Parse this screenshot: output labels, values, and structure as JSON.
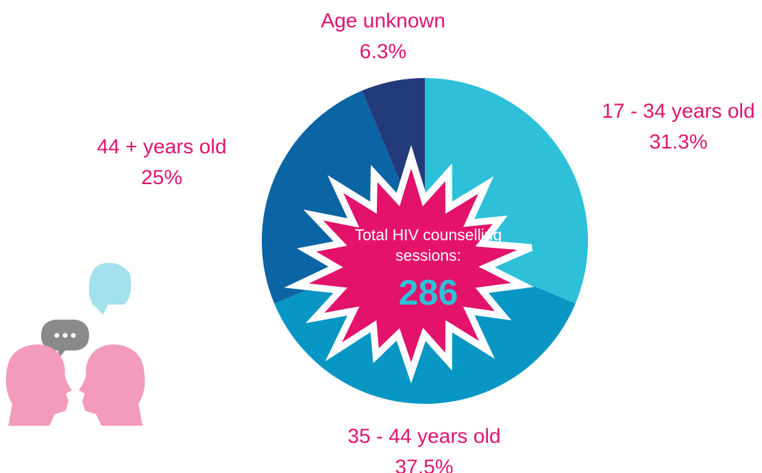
{
  "chart_data": {
    "type": "pie",
    "categories": [
      "17 - 34 years old",
      "35 - 44 years old",
      "44 + years old",
      "Age unknown"
    ],
    "values": [
      31.3,
      37.5,
      25,
      6.3
    ],
    "value_labels": [
      "31.3%",
      "37.5%",
      "25%",
      "6.3%"
    ],
    "colors": [
      "#2ec0d8",
      "#0896c4",
      "#0b64a3",
      "#233b7a"
    ],
    "center_label": "Total HIV counselling sessions:",
    "total": 286
  }
}
